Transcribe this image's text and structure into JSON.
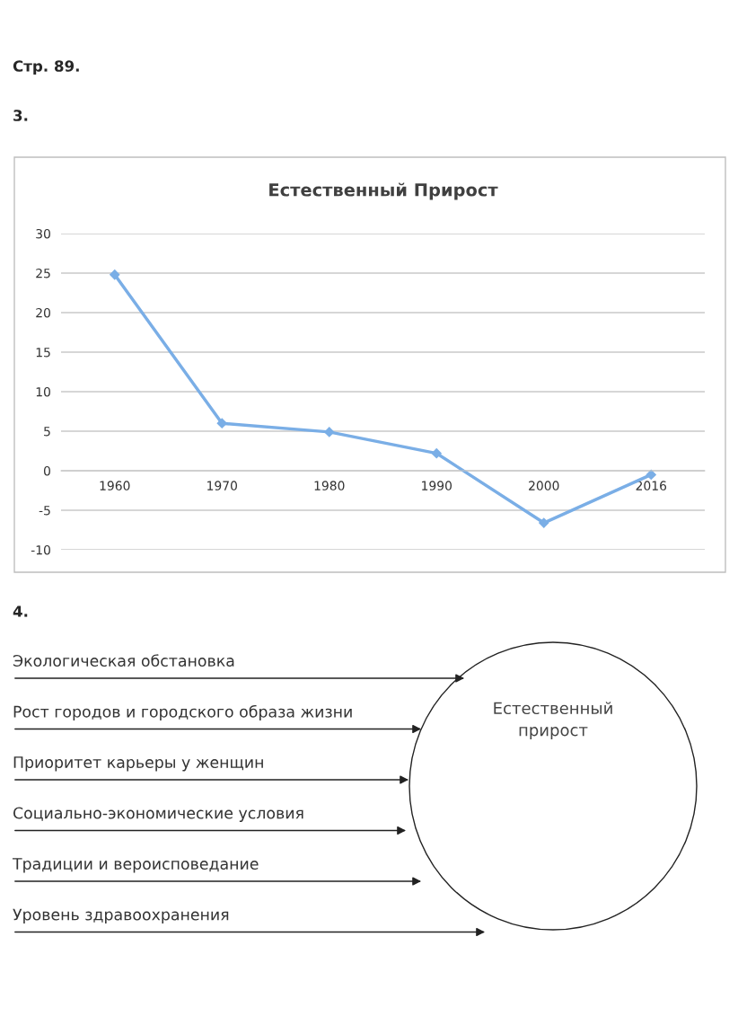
{
  "chart_data": [
    {
      "type": "line",
      "title": "Естественный Прирост",
      "annotations": [
        "Стр. 89.",
        "3."
      ],
      "categories": [
        "1960",
        "1970",
        "1980",
        "1990",
        "2000",
        "2016"
      ],
      "series": [
        {
          "color": "#7aaee6",
          "values": [
            24.8,
            6.0,
            4.9,
            2.2,
            -6.6,
            -0.5
          ]
        }
      ],
      "ylim": [
        -10,
        30
      ],
      "yticks": [
        -10,
        -5,
        0,
        5,
        10,
        15,
        20,
        25,
        30
      ],
      "grid": "y",
      "marker": "diamond",
      "line_style": "solid"
    },
    {
      "type": "other",
      "title": "Естественный\nприрост",
      "annotations": [
        "4."
      ],
      "categories": [
        "Экологическая обстановка",
        "Рост городов и городского образа жизни",
        "Приоритет карьеры у женщин",
        "Социально-экономические условия",
        "Традиции и вероисповедание",
        "Уровень здравоохранения"
      ]
    }
  ]
}
